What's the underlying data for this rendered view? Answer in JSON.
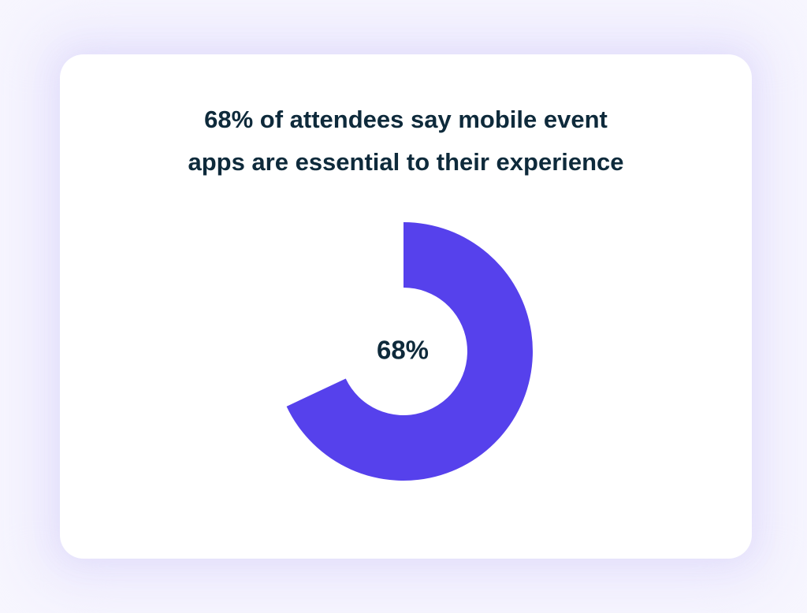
{
  "title": {
    "line1": "68% of attendees say mobile event",
    "line2": "apps are essential to their experience"
  },
  "colors": {
    "accent": "#5641ec",
    "text": "#0e2a3b",
    "card": "#ffffff",
    "background": "#f7f6fe"
  },
  "chart_data": {
    "type": "pie",
    "variant": "donut",
    "values": [
      68
    ],
    "total": 100,
    "center_label": "68%",
    "title": "68% of attendees say mobile event apps are essential to their experience"
  }
}
